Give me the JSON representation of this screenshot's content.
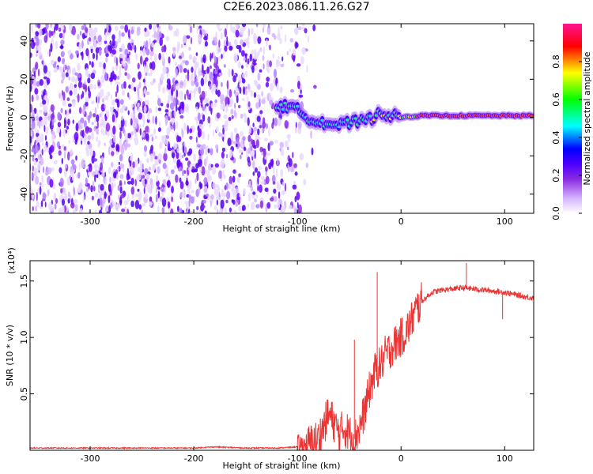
{
  "title": "C2E6.2023.086.11.26.G27",
  "chart_data": [
    {
      "type": "heatmap",
      "title": "C2E6.2023.086.11.26.G27",
      "xlabel": "Height of straight line (km)",
      "ylabel": "Frequency (Hz)",
      "xlim": [
        -358,
        128
      ],
      "ylim": [
        -50,
        49
      ],
      "xticks": [
        -300,
        -200,
        -100,
        0,
        100
      ],
      "yticks": [
        -40,
        -20,
        0,
        20,
        40
      ],
      "colorbar": {
        "label": "Normalized spectral amplitude",
        "range": [
          0.0,
          1.0
        ],
        "ticks": [
          0.0,
          0.2,
          0.4,
          0.6,
          0.8
        ],
        "colors": [
          "#ffffff",
          "#d5b3ff",
          "#8a2be2",
          "#4b00ff",
          "#0000ff",
          "#00ffff",
          "#00ff00",
          "#ffff00",
          "#ff0000",
          "#ff1493"
        ]
      },
      "ridge": {
        "description": "concentrated signal near 0 Hz",
        "x": [
          -120,
          -100,
          -90,
          -80,
          -70,
          -60,
          -50,
          -40,
          -30,
          -20,
          -10,
          0,
          20,
          60,
          90,
          128
        ],
        "y": [
          7,
          4,
          0,
          -2,
          -3,
          -4,
          -3,
          -2,
          -1,
          3,
          1,
          0,
          1,
          1,
          1,
          1
        ]
      }
    },
    {
      "type": "line",
      "xlabel": "Height of straight line (km)",
      "ylabel": "SNR (10 * v/v)",
      "y_multiplier": "(x10⁴)",
      "xlim": [
        -358,
        128
      ],
      "ylim": [
        0.0,
        1.68
      ],
      "xticks": [
        -300,
        -200,
        -100,
        0,
        100
      ],
      "yticks": [
        0.5,
        1.0,
        1.5
      ],
      "ytick_labels": [
        "0.5",
        "1.0",
        "1.5"
      ],
      "color": "#ee3333",
      "series": [
        {
          "x": [
            -358,
            -300,
            -250,
            -200,
            -180,
            -150,
            -120,
            -100,
            -90,
            -80,
            -75,
            -70,
            -65,
            -60,
            -55,
            -50,
            -45,
            -40,
            -35,
            -30,
            -25,
            -20,
            -15,
            -10,
            -5,
            0,
            5,
            10,
            15,
            20,
            25,
            30,
            40,
            50,
            60,
            70,
            80,
            90,
            100,
            110,
            120,
            128
          ],
          "y": [
            0.02,
            0.02,
            0.02,
            0.02,
            0.03,
            0.02,
            0.02,
            0.03,
            0.05,
            0.1,
            0.2,
            0.32,
            0.25,
            0.15,
            0.2,
            0.15,
            0.1,
            0.2,
            0.35,
            0.55,
            0.7,
            0.75,
            0.85,
            0.9,
            0.95,
            1.0,
            1.05,
            1.15,
            1.25,
            1.32,
            1.36,
            1.4,
            1.42,
            1.43,
            1.44,
            1.43,
            1.42,
            1.41,
            1.4,
            1.38,
            1.36,
            1.35
          ]
        }
      ],
      "spikes": [
        {
          "x": -45,
          "y": 0.98
        },
        {
          "x": -23,
          "y": 1.58
        },
        {
          "x": 63,
          "y": 1.66
        },
        {
          "x": 98,
          "y": 1.16
        }
      ]
    }
  ]
}
